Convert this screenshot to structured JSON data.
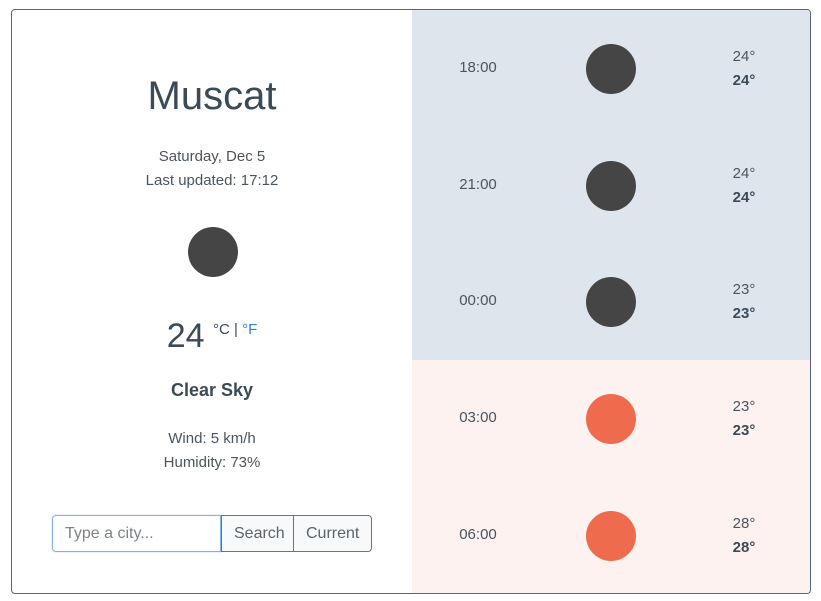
{
  "current": {
    "city": "Muscat",
    "date": "Saturday, Dec 5",
    "updated_label": "Last updated:",
    "updated_time": "17:12",
    "icon": "moon-icon",
    "temperature": "24",
    "unit_c": "°C",
    "unit_sep": "|",
    "unit_f": "°F",
    "description": "Clear Sky",
    "wind": "Wind: 5 km/h",
    "humidity": "Humidity: 73%"
  },
  "search": {
    "placeholder": "Type a city...",
    "value": "",
    "search_label": "Search",
    "current_label": "Current"
  },
  "forecast": [
    {
      "time": "18:00",
      "icon": "moon-icon",
      "temp": "24°",
      "feels": "24°",
      "period": "night"
    },
    {
      "time": "21:00",
      "icon": "moon-icon",
      "temp": "24°",
      "feels": "24°",
      "period": "night"
    },
    {
      "time": "00:00",
      "icon": "moon-icon",
      "temp": "23°",
      "feels": "23°",
      "period": "night"
    },
    {
      "time": "03:00",
      "icon": "sun-icon",
      "temp": "23°",
      "feels": "23°",
      "period": "day"
    },
    {
      "time": "06:00",
      "icon": "sun-icon",
      "temp": "28°",
      "feels": "28°",
      "period": "day"
    }
  ],
  "colors": {
    "night_bg": "#dfe5ed",
    "day_bg": "#fdf2ef",
    "moon": "#454545",
    "sun": "#ee6c4d",
    "link": "#2f7fd8"
  }
}
